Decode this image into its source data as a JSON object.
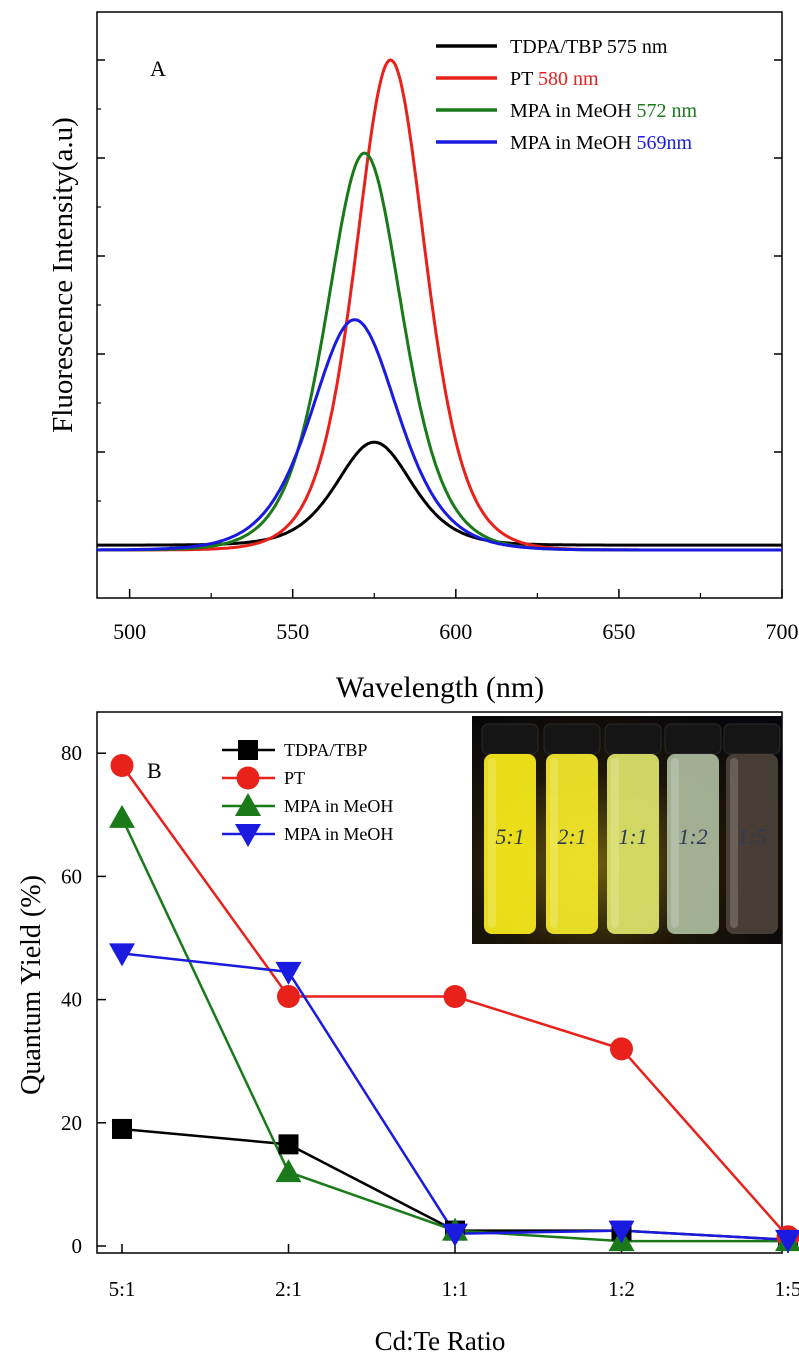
{
  "chart_data": [
    {
      "type": "line",
      "panel": "A",
      "title": "",
      "xlabel": "Wavelength  (nm)",
      "ylabel": "Fluorescence  Intensity(a.u)",
      "xlim": [
        490,
        700
      ],
      "ylim": [
        0,
        1.1
      ],
      "xticks": [
        500,
        550,
        600,
        650,
        700
      ],
      "yticks_labeled": false,
      "legend_position": "top-right",
      "series": [
        {
          "name_main": "TDPA/TBP",
          "name_peak": "575 nm",
          "color": "#000000",
          "peak": 575,
          "height": 0.21,
          "width": 14,
          "baseline": 0.01
        },
        {
          "name_main": "PT",
          "name_peak": "580 nm",
          "color": "#e8211b",
          "peak": 580,
          "height": 1.0,
          "width": 13,
          "baseline": 0.0
        },
        {
          "name_main": "MPA in MeOH",
          "name_peak": "572 nm",
          "color": "#1a7a1a",
          "peak": 572,
          "height": 0.81,
          "width": 14,
          "baseline": 0.0
        },
        {
          "name_main": "MPA in MeOH",
          "name_peak": "569nm",
          "color": "#1a1ae0",
          "peak": 569,
          "height": 0.47,
          "width": 16,
          "baseline": 0.0
        }
      ]
    },
    {
      "type": "line",
      "panel": "B",
      "title": "",
      "xlabel": "Cd:Te Ratio",
      "ylabel": "Quantum Yield (%)",
      "categories": [
        "5:1",
        "2:1",
        "1:1",
        "1:2",
        "1:5"
      ],
      "ylim": [
        -1,
        90
      ],
      "yticks": [
        0,
        20,
        40,
        60,
        80
      ],
      "legend_position": "top-left",
      "series": [
        {
          "name": "TDPA/TBP",
          "color": "#000000",
          "marker": "square",
          "values": [
            19,
            16.5,
            2.5,
            2.5,
            1
          ]
        },
        {
          "name": "PT",
          "color": "#e8211b",
          "marker": "circle",
          "values": [
            78,
            40.5,
            40.5,
            32,
            1.5
          ]
        },
        {
          "name": "MPA in MeOH",
          "color": "#1a7a1a",
          "marker": "triangle-up",
          "values": [
            69.5,
            12,
            2.5,
            0.8,
            0.8
          ]
        },
        {
          "name": "MPA in MeOH",
          "color": "#1a1ae0",
          "marker": "triangle-down",
          "values": [
            47.5,
            44.5,
            2,
            2.5,
            1
          ]
        }
      ]
    }
  ],
  "inset_photo": {
    "description_icon": "vials-photo",
    "vial_labels": [
      "5:1",
      "2:1",
      "1:1",
      "1:2",
      "1:5"
    ],
    "vial_colors": [
      "#f4e81a",
      "#f1e62a",
      "#d9e067",
      "#a9b79b",
      "#4a4038"
    ]
  }
}
